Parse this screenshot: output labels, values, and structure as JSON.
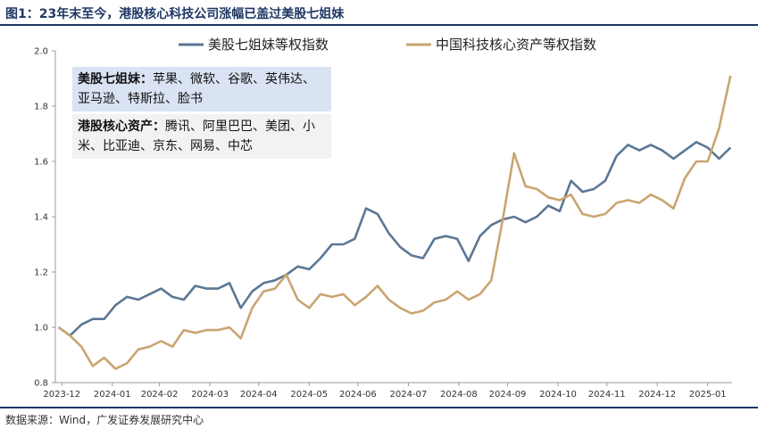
{
  "header": {
    "title": "图1：23年末至今，港股核心科技公司涨幅已盖过美股七姐妹"
  },
  "footer": {
    "source": "数据来源：Wind，广发证券发展研究中心"
  },
  "notes": [
    {
      "heading": "美股七姐妹：",
      "body": "苹果、微软、谷歌、英伟达、亚马逊、特斯拉、脸书"
    },
    {
      "heading": "港股核心资产：",
      "body": "腾讯、阿里巴巴、美团、小米、比亚迪、京东、网易、中芯"
    }
  ],
  "colors": {
    "us": "#5b7794",
    "china": "#c9a571",
    "axis": "#999999"
  },
  "chart_data": {
    "type": "line",
    "x_tick_labels": [
      "2023-12",
      "2024-01",
      "2024-02",
      "2024-03",
      "2024-04",
      "2024-05",
      "2024-06",
      "2024-07",
      "2024-08",
      "2024-09",
      "2024-10",
      "2024-11",
      "2024-12",
      "2025-01"
    ],
    "y_ticks": [
      0.8,
      1.0,
      1.2,
      1.4,
      1.6,
      1.8,
      2.0
    ],
    "y_tick_labels": [
      "0.8",
      "1.0",
      "1.2",
      "1.4",
      "1.6",
      "1.8",
      "2.0"
    ],
    "ylim": [
      0.8,
      2.0
    ],
    "legend_position": "top",
    "series": [
      {
        "name": "美股七姐妹等权指数",
        "color": "#5b7794",
        "points": [
          [
            "2023-12-29",
            1.0
          ],
          [
            "2024-01-05",
            0.97
          ],
          [
            "2024-01-12",
            1.01
          ],
          [
            "2024-01-19",
            1.03
          ],
          [
            "2024-01-26",
            1.03
          ],
          [
            "2024-02-02",
            1.08
          ],
          [
            "2024-02-09",
            1.11
          ],
          [
            "2024-02-16",
            1.1
          ],
          [
            "2024-02-23",
            1.12
          ],
          [
            "2024-03-01",
            1.14
          ],
          [
            "2024-03-08",
            1.11
          ],
          [
            "2024-03-15",
            1.1
          ],
          [
            "2024-03-22",
            1.15
          ],
          [
            "2024-03-29",
            1.14
          ],
          [
            "2024-04-05",
            1.14
          ],
          [
            "2024-04-12",
            1.16
          ],
          [
            "2024-04-19",
            1.07
          ],
          [
            "2024-04-26",
            1.13
          ],
          [
            "2024-05-03",
            1.16
          ],
          [
            "2024-05-10",
            1.17
          ],
          [
            "2024-05-17",
            1.19
          ],
          [
            "2024-05-24",
            1.22
          ],
          [
            "2024-05-31",
            1.21
          ],
          [
            "2024-06-07",
            1.25
          ],
          [
            "2024-06-14",
            1.3
          ],
          [
            "2024-06-21",
            1.3
          ],
          [
            "2024-06-28",
            1.32
          ],
          [
            "2024-07-05",
            1.43
          ],
          [
            "2024-07-12",
            1.41
          ],
          [
            "2024-07-19",
            1.34
          ],
          [
            "2024-07-26",
            1.29
          ],
          [
            "2024-08-02",
            1.26
          ],
          [
            "2024-08-09",
            1.25
          ],
          [
            "2024-08-16",
            1.32
          ],
          [
            "2024-08-23",
            1.33
          ],
          [
            "2024-08-30",
            1.32
          ],
          [
            "2024-09-06",
            1.24
          ],
          [
            "2024-09-13",
            1.33
          ],
          [
            "2024-09-20",
            1.37
          ],
          [
            "2024-09-27",
            1.39
          ],
          [
            "2024-10-04",
            1.4
          ],
          [
            "2024-10-11",
            1.38
          ],
          [
            "2024-10-18",
            1.4
          ],
          [
            "2024-10-25",
            1.44
          ],
          [
            "2024-11-01",
            1.42
          ],
          [
            "2024-11-08",
            1.53
          ],
          [
            "2024-11-15",
            1.49
          ],
          [
            "2024-11-22",
            1.5
          ],
          [
            "2024-11-29",
            1.53
          ],
          [
            "2024-12-06",
            1.62
          ],
          [
            "2024-12-13",
            1.66
          ],
          [
            "2024-12-20",
            1.64
          ],
          [
            "2024-12-27",
            1.66
          ],
          [
            "2025-01-03",
            1.64
          ],
          [
            "2025-01-10",
            1.61
          ],
          [
            "2025-01-17",
            1.64
          ],
          [
            "2025-01-24",
            1.67
          ],
          [
            "2025-01-31",
            1.65
          ],
          [
            "2025-02-07",
            1.61
          ],
          [
            "2025-02-14",
            1.65
          ]
        ]
      },
      {
        "name": "中国科技核心资产等权指数",
        "color": "#c9a571",
        "points": [
          [
            "2023-12-29",
            1.0
          ],
          [
            "2024-01-05",
            0.97
          ],
          [
            "2024-01-12",
            0.93
          ],
          [
            "2024-01-19",
            0.86
          ],
          [
            "2024-01-26",
            0.89
          ],
          [
            "2024-02-02",
            0.85
          ],
          [
            "2024-02-09",
            0.87
          ],
          [
            "2024-02-16",
            0.92
          ],
          [
            "2024-02-23",
            0.93
          ],
          [
            "2024-03-01",
            0.95
          ],
          [
            "2024-03-08",
            0.93
          ],
          [
            "2024-03-15",
            0.99
          ],
          [
            "2024-03-22",
            0.98
          ],
          [
            "2024-03-29",
            0.99
          ],
          [
            "2024-04-05",
            0.99
          ],
          [
            "2024-04-12",
            1.0
          ],
          [
            "2024-04-19",
            0.96
          ],
          [
            "2024-04-26",
            1.07
          ],
          [
            "2024-05-03",
            1.13
          ],
          [
            "2024-05-10",
            1.14
          ],
          [
            "2024-05-17",
            1.19
          ],
          [
            "2024-05-24",
            1.1
          ],
          [
            "2024-05-31",
            1.07
          ],
          [
            "2024-06-07",
            1.12
          ],
          [
            "2024-06-14",
            1.11
          ],
          [
            "2024-06-21",
            1.12
          ],
          [
            "2024-06-28",
            1.08
          ],
          [
            "2024-07-05",
            1.11
          ],
          [
            "2024-07-12",
            1.15
          ],
          [
            "2024-07-19",
            1.1
          ],
          [
            "2024-07-26",
            1.07
          ],
          [
            "2024-08-02",
            1.05
          ],
          [
            "2024-08-09",
            1.06
          ],
          [
            "2024-08-16",
            1.09
          ],
          [
            "2024-08-23",
            1.1
          ],
          [
            "2024-08-30",
            1.13
          ],
          [
            "2024-09-06",
            1.1
          ],
          [
            "2024-09-13",
            1.12
          ],
          [
            "2024-09-20",
            1.17
          ],
          [
            "2024-09-27",
            1.39
          ],
          [
            "2024-10-04",
            1.63
          ],
          [
            "2024-10-11",
            1.51
          ],
          [
            "2024-10-18",
            1.5
          ],
          [
            "2024-10-25",
            1.47
          ],
          [
            "2024-11-01",
            1.46
          ],
          [
            "2024-11-08",
            1.48
          ],
          [
            "2024-11-15",
            1.41
          ],
          [
            "2024-11-22",
            1.4
          ],
          [
            "2024-11-29",
            1.41
          ],
          [
            "2024-12-06",
            1.45
          ],
          [
            "2024-12-13",
            1.46
          ],
          [
            "2024-12-20",
            1.45
          ],
          [
            "2024-12-27",
            1.48
          ],
          [
            "2025-01-03",
            1.46
          ],
          [
            "2025-01-10",
            1.43
          ],
          [
            "2025-01-17",
            1.54
          ],
          [
            "2025-01-24",
            1.6
          ],
          [
            "2025-01-31",
            1.6
          ],
          [
            "2025-02-07",
            1.72
          ],
          [
            "2025-02-14",
            1.91
          ]
        ]
      }
    ]
  }
}
